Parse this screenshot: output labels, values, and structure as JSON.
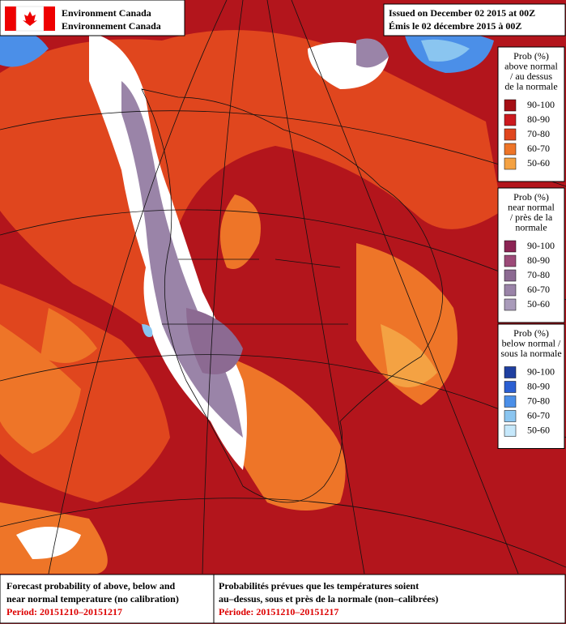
{
  "header": {
    "agency_en": "Environment Canada",
    "agency_fr": "Environnement Canada",
    "issued_en": "Issued on December 02 2015 at 00Z",
    "issued_fr": "Émis le 02 décembre 2015 à 00Z"
  },
  "legends": [
    {
      "title": [
        "Prob (%)",
        "above normal",
        "/ au dessus",
        "de la normale"
      ],
      "items": [
        {
          "label": "90-100",
          "color": "#a50f15"
        },
        {
          "label": "80-90",
          "color": "#cc1a1f"
        },
        {
          "label": "70-80",
          "color": "#e0461e"
        },
        {
          "label": "60-70",
          "color": "#ee7528"
        },
        {
          "label": "50-60",
          "color": "#f4a243"
        }
      ]
    },
    {
      "title": [
        "Prob (%)",
        "near normal",
        "/ près de la",
        "normale"
      ],
      "items": [
        {
          "label": "90-100",
          "color": "#8c2454"
        },
        {
          "label": "80-90",
          "color": "#9c4a78"
        },
        {
          "label": "70-80",
          "color": "#8c6a92"
        },
        {
          "label": "60-70",
          "color": "#9a84a8"
        },
        {
          "label": "50-60",
          "color": "#a99bba"
        }
      ]
    },
    {
      "title": [
        "Prob (%)",
        "below normal /",
        "sous la normale"
      ],
      "items": [
        {
          "label": "90-100",
          "color": "#1f3fa0"
        },
        {
          "label": "80-90",
          "color": "#2b5fd2"
        },
        {
          "label": "70-80",
          "color": "#4b8fe8"
        },
        {
          "label": "60-70",
          "color": "#8ac5f0"
        },
        {
          "label": "50-60",
          "color": "#c6e8fb"
        }
      ]
    }
  ],
  "footer": {
    "en": [
      "Forecast probability of above, below and",
      "near normal temperature (no calibration)"
    ],
    "en_period": "Period: 20151210–20151217",
    "fr": [
      "Probabilités prévues que les températures soient",
      "au–dessus, sous et près de la normale (non–calibrées)"
    ],
    "fr_period": "Période: 20151210–20151217"
  }
}
